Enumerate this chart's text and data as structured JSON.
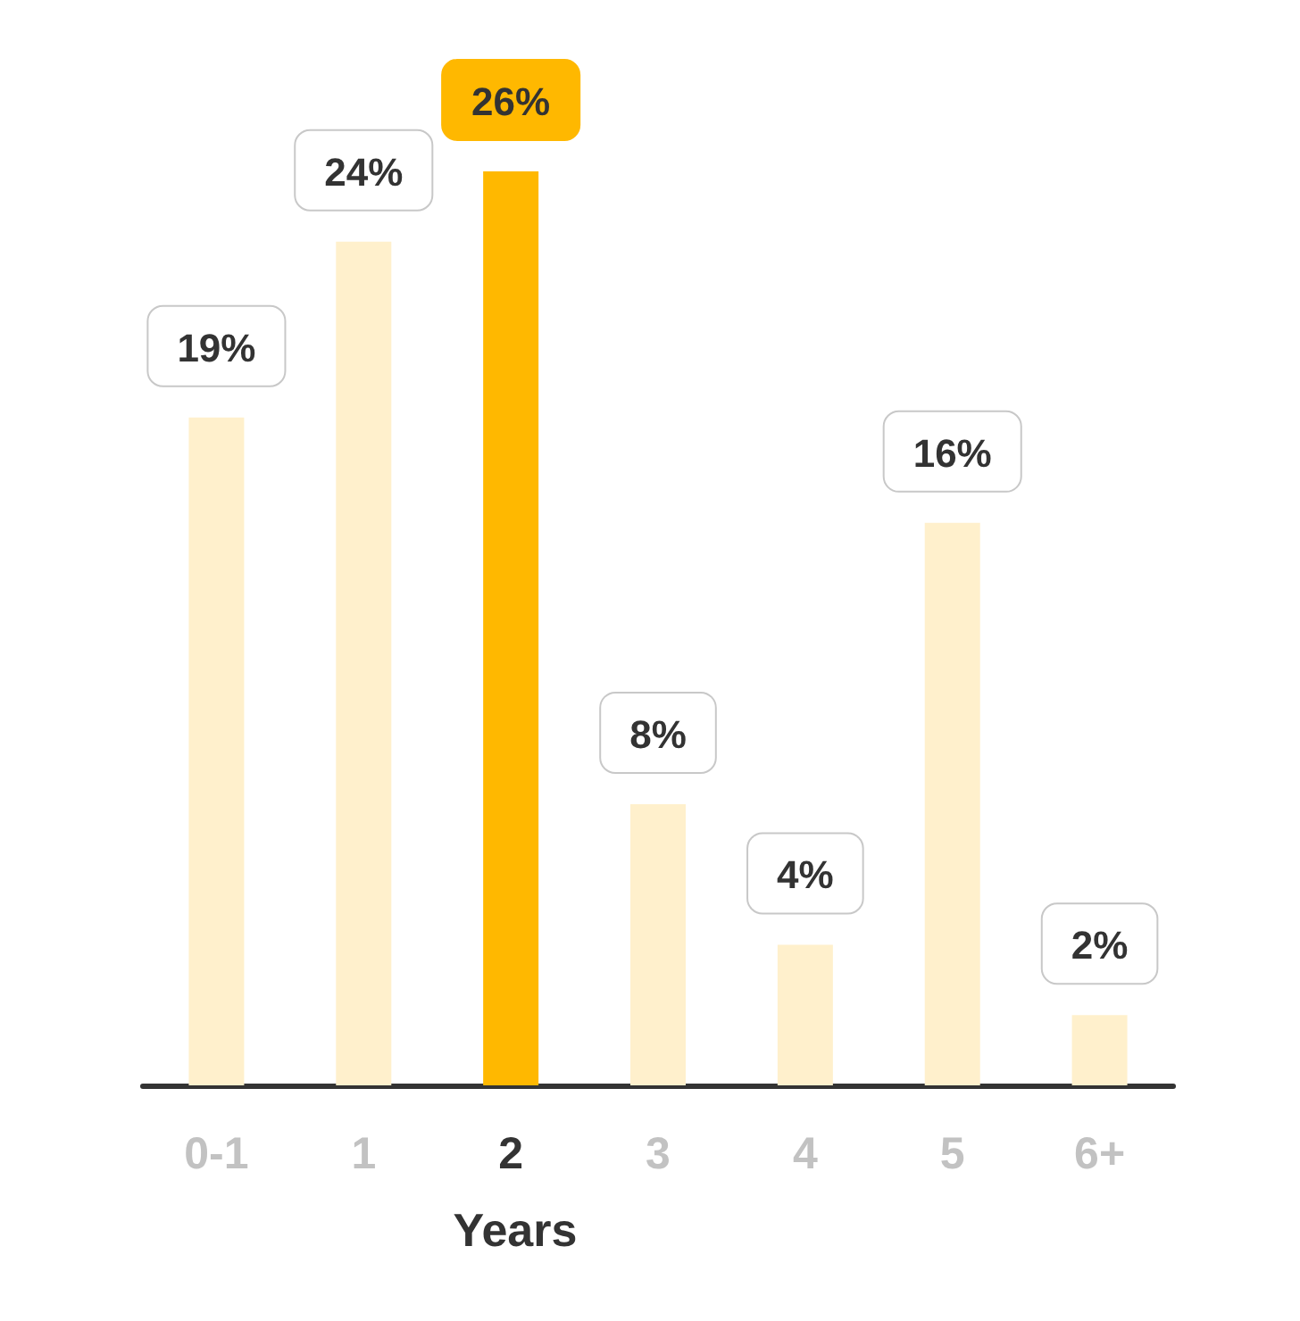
{
  "chart_data": {
    "type": "bar",
    "xlabel": "Years",
    "categories": [
      "0-1",
      "1",
      "2",
      "3",
      "4",
      "5",
      "6+"
    ],
    "values": [
      19,
      24,
      26,
      8,
      4,
      16,
      2
    ],
    "colors": [
      "#fff0cc",
      "#fff0cc",
      "#ffb800",
      "#fff0cc",
      "#fff0cc",
      "#fff0cc",
      "#fff0cc"
    ],
    "value_labels": [
      "19%",
      "24%",
      "26%",
      "8%",
      "4%",
      "16%",
      "2%"
    ]
  }
}
